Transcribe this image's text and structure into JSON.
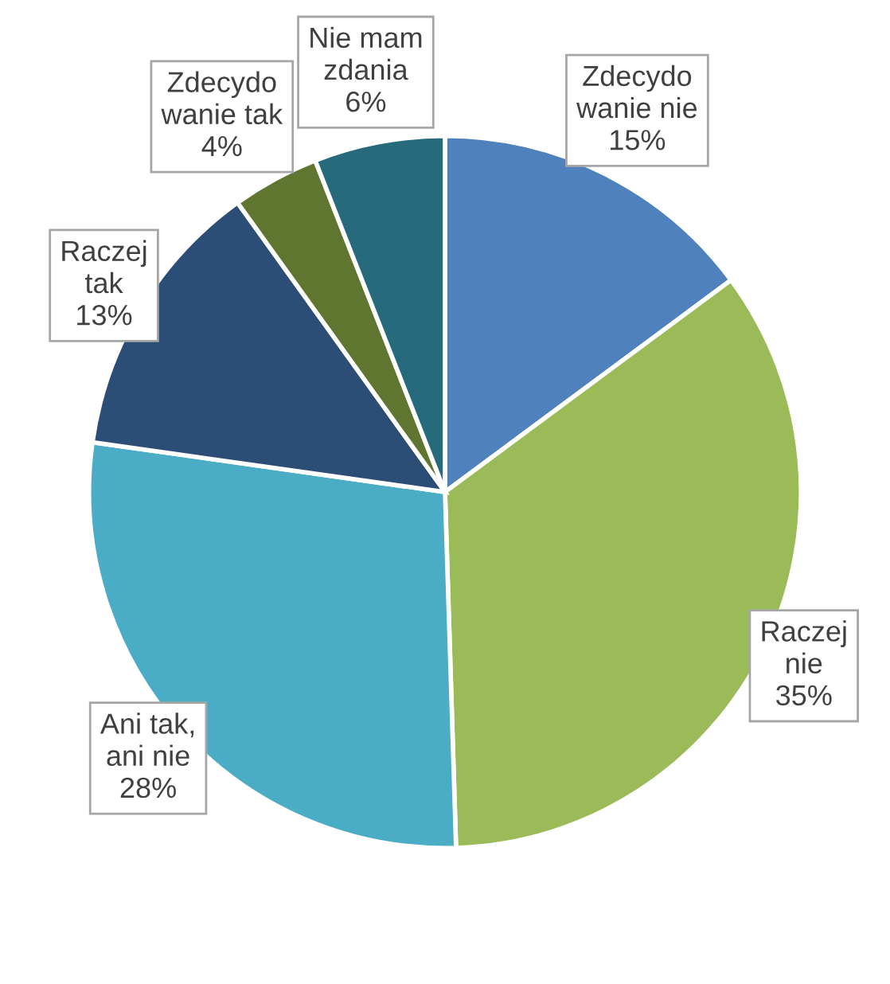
{
  "chart_data": {
    "type": "pie",
    "categories": [
      "Zdecydo\nwanie nie",
      "Raczej\nnie",
      "Ani tak,\nani nie",
      "Raczej\ntak",
      "Zdecydo\nwanie tak",
      "Nie mam\nzdania"
    ],
    "values": [
      15,
      35,
      28,
      13,
      4,
      6
    ],
    "value_labels": [
      "15%",
      "35%",
      "28%",
      "13%",
      "4%",
      "6%"
    ],
    "colors": [
      "#4f81bd",
      "#9bbb59",
      "#4bacc6",
      "#2c4d75",
      "#5f7530",
      "#276a7c"
    ],
    "legend": false
  }
}
